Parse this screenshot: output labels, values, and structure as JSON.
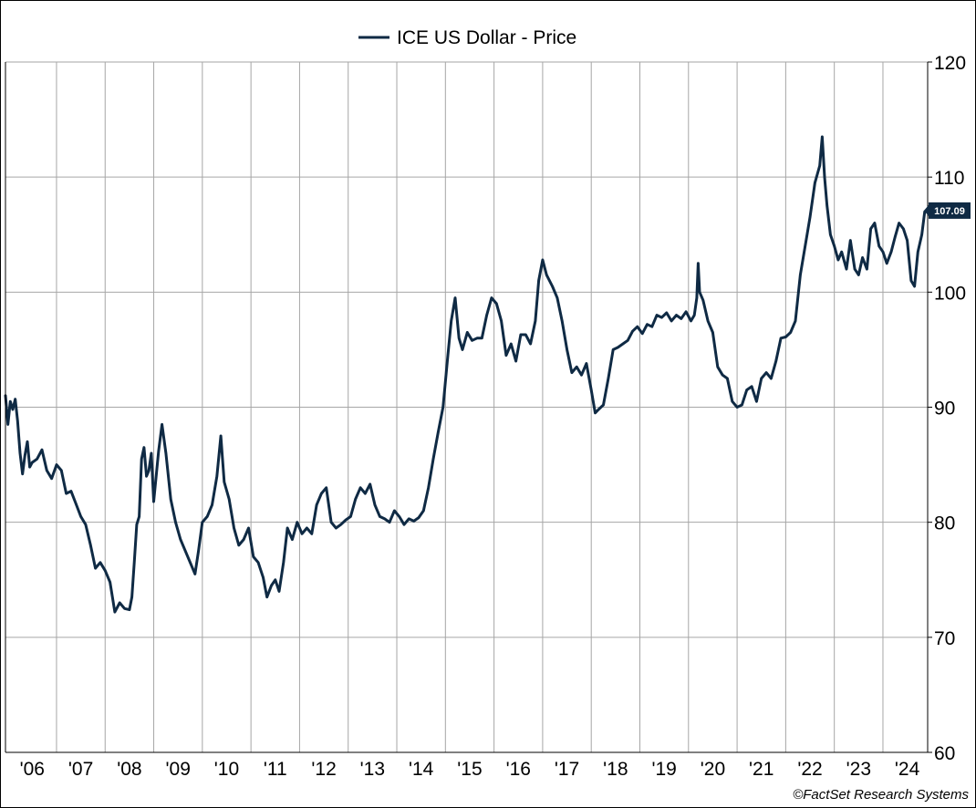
{
  "chart_data": {
    "type": "line",
    "title": "",
    "xlabel": "",
    "ylabel": "",
    "legend": {
      "placement": "top-center",
      "entries": [
        "ICE US Dollar - Price"
      ]
    },
    "ylim": [
      60,
      120
    ],
    "y_ticks": [
      "60",
      "70",
      "80",
      "90",
      "100",
      "110",
      "120"
    ],
    "y_axis_side": "right",
    "xlim": [
      2005.95,
      2024.92
    ],
    "x_tick_labels": [
      "'06",
      "'07",
      "'08",
      "'09",
      "'10",
      "'11",
      "'12",
      "'13",
      "'14",
      "'15",
      "'16",
      "'17",
      "'18",
      "'19",
      "'20",
      "'21",
      "'22",
      "'23",
      "'24"
    ],
    "grid": true,
    "last_value_label": "107.09",
    "credit": "©FactSet Research Systems",
    "series": [
      {
        "name": "ICE US Dollar - Price",
        "color": "#0f2a44",
        "x": [
          2005.95,
          2006.0,
          2006.05,
          2006.1,
          2006.15,
          2006.2,
          2006.25,
          2006.3,
          2006.35,
          2006.4,
          2006.45,
          2006.5,
          2006.6,
          2006.7,
          2006.8,
          2006.9,
          2007.0,
          2007.1,
          2007.2,
          2007.3,
          2007.4,
          2007.5,
          2007.6,
          2007.7,
          2007.8,
          2007.9,
          2008.0,
          2008.1,
          2008.2,
          2008.3,
          2008.4,
          2008.5,
          2008.55,
          2008.6,
          2008.65,
          2008.7,
          2008.75,
          2008.8,
          2008.85,
          2008.9,
          2008.95,
          2009.0,
          2009.1,
          2009.17,
          2009.25,
          2009.35,
          2009.45,
          2009.55,
          2009.65,
          2009.75,
          2009.85,
          2009.92,
          2010.0,
          2010.1,
          2010.2,
          2010.3,
          2010.38,
          2010.45,
          2010.55,
          2010.65,
          2010.75,
          2010.85,
          2010.95,
          2011.05,
          2011.15,
          2011.25,
          2011.33,
          2011.42,
          2011.5,
          2011.58,
          2011.67,
          2011.75,
          2011.85,
          2011.95,
          2012.05,
          2012.15,
          2012.25,
          2012.35,
          2012.45,
          2012.55,
          2012.65,
          2012.75,
          2012.85,
          2012.95,
          2013.05,
          2013.15,
          2013.25,
          2013.35,
          2013.45,
          2013.55,
          2013.65,
          2013.75,
          2013.85,
          2013.95,
          2014.05,
          2014.15,
          2014.25,
          2014.35,
          2014.45,
          2014.55,
          2014.65,
          2014.75,
          2014.85,
          2014.95,
          2015.05,
          2015.12,
          2015.2,
          2015.28,
          2015.35,
          2015.45,
          2015.55,
          2015.65,
          2015.75,
          2015.85,
          2015.95,
          2016.05,
          2016.15,
          2016.25,
          2016.35,
          2016.45,
          2016.55,
          2016.65,
          2016.75,
          2016.85,
          2016.92,
          2017.0,
          2017.08,
          2017.2,
          2017.3,
          2017.4,
          2017.5,
          2017.6,
          2017.7,
          2017.8,
          2017.9,
          2018.0,
          2018.08,
          2018.15,
          2018.25,
          2018.35,
          2018.45,
          2018.55,
          2018.65,
          2018.75,
          2018.85,
          2018.95,
          2019.05,
          2019.15,
          2019.25,
          2019.35,
          2019.45,
          2019.55,
          2019.65,
          2019.75,
          2019.85,
          2019.95,
          2020.05,
          2020.12,
          2020.17,
          2020.2,
          2020.23,
          2020.3,
          2020.4,
          2020.5,
          2020.6,
          2020.7,
          2020.8,
          2020.9,
          2021.0,
          2021.1,
          2021.2,
          2021.3,
          2021.4,
          2021.5,
          2021.6,
          2021.7,
          2021.8,
          2021.9,
          2022.0,
          2022.1,
          2022.2,
          2022.3,
          2022.4,
          2022.5,
          2022.6,
          2022.7,
          2022.75,
          2022.8,
          2022.85,
          2022.92,
          2023.0,
          2023.08,
          2023.15,
          2023.25,
          2023.33,
          2023.42,
          2023.5,
          2023.58,
          2023.67,
          2023.75,
          2023.83,
          2023.92,
          2024.0,
          2024.08,
          2024.17,
          2024.25,
          2024.33,
          2024.42,
          2024.5,
          2024.58,
          2024.65,
          2024.72,
          2024.8,
          2024.86,
          2024.92
        ],
        "values": [
          91.0,
          88.5,
          90.5,
          89.8,
          90.7,
          88.8,
          86.0,
          84.2,
          85.8,
          87.0,
          84.8,
          85.2,
          85.5,
          86.3,
          84.5,
          83.8,
          85.0,
          84.5,
          82.5,
          82.7,
          81.6,
          80.5,
          79.8,
          78.0,
          76.0,
          76.5,
          75.8,
          74.8,
          72.2,
          73.0,
          72.5,
          72.4,
          73.5,
          76.5,
          79.8,
          80.5,
          85.5,
          86.5,
          84.0,
          84.5,
          86.0,
          81.8,
          86.2,
          88.5,
          86.0,
          82.0,
          80.0,
          78.5,
          77.5,
          76.5,
          75.5,
          77.5,
          80.0,
          80.5,
          81.5,
          84.0,
          87.5,
          83.5,
          82.0,
          79.5,
          78.0,
          78.5,
          79.5,
          77.0,
          76.5,
          75.2,
          73.5,
          74.5,
          75.0,
          74.0,
          76.5,
          79.5,
          78.5,
          80.0,
          79.0,
          79.5,
          79.0,
          81.5,
          82.5,
          83.0,
          80.0,
          79.5,
          79.8,
          80.2,
          80.5,
          82.0,
          83.0,
          82.5,
          83.3,
          81.5,
          80.5,
          80.3,
          80.0,
          81.0,
          80.5,
          79.8,
          80.3,
          80.1,
          80.4,
          81.0,
          83.0,
          85.5,
          87.8,
          90.0,
          94.5,
          97.5,
          99.5,
          96.0,
          95.0,
          96.5,
          95.8,
          96.0,
          96.0,
          98.0,
          99.5,
          99.0,
          97.5,
          94.5,
          95.5,
          94.0,
          96.3,
          96.3,
          95.5,
          97.5,
          101.0,
          102.8,
          101.5,
          100.5,
          99.5,
          97.5,
          95.0,
          93.0,
          93.5,
          92.8,
          93.8,
          91.5,
          89.5,
          89.8,
          90.2,
          92.5,
          95.0,
          95.2,
          95.5,
          95.8,
          96.6,
          97.0,
          96.4,
          97.2,
          97.0,
          98.0,
          97.8,
          98.2,
          97.5,
          98.0,
          97.7,
          98.3,
          97.5,
          98.0,
          99.5,
          102.5,
          100.0,
          99.3,
          97.5,
          96.5,
          93.5,
          92.8,
          92.5,
          90.5,
          90.0,
          90.2,
          91.5,
          91.8,
          90.5,
          92.5,
          93.0,
          92.5,
          94.0,
          96.0,
          96.1,
          96.5,
          97.5,
          101.5,
          104.0,
          106.5,
          109.5,
          111.0,
          113.5,
          110.0,
          107.5,
          105.0,
          104.0,
          102.8,
          103.5,
          102.0,
          104.5,
          102.0,
          101.5,
          103.0,
          102.0,
          105.5,
          106.0,
          104.0,
          103.5,
          102.5,
          103.5,
          104.8,
          106.0,
          105.5,
          104.5,
          101.0,
          100.5,
          103.5,
          105.0,
          107.0,
          107.09
        ]
      }
    ]
  }
}
